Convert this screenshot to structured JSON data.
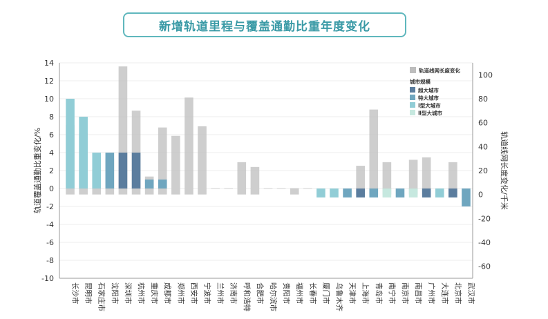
{
  "chart_data": {
    "type": "bar",
    "title": "新增轨道里程与覆盖通勤比重年度变化",
    "ylabel": "轨道覆盖通勤比重变化/%",
    "ylabel2": "轨道线网长度变化/千米",
    "ylim": [
      -10,
      14
    ],
    "ylim2": [
      -70,
      110
    ],
    "yticks": [
      14,
      12,
      10,
      8,
      6,
      4,
      2,
      0,
      -2,
      -4,
      -6,
      -8,
      -10
    ],
    "yticks2": [
      100,
      80,
      60,
      40,
      20,
      0,
      -20,
      -40,
      -60
    ],
    "categories": [
      "长沙市",
      "昆明市",
      "石家庄市",
      "沈阳市",
      "深圳市",
      "杭州市",
      "重庆市",
      "成都市",
      "郑州市",
      "西安市",
      "宁波市",
      "兰州市",
      "济南市",
      "呼和浩特",
      "合肥市",
      "哈尔滨市",
      "贵阳市",
      "福州市",
      "长春市",
      "厦门市",
      "乌鲁木齐",
      "天津市",
      "上海市",
      "青岛市",
      "南宁市",
      "南京市",
      "南昌市",
      "广州市",
      "大连市",
      "北京市",
      "武汉市"
    ],
    "series": [
      {
        "name": "轨道线网长度变化",
        "axis": "right",
        "color": "#bdbdbd",
        "values": [
          58,
          51,
          21,
          30,
          107,
          70,
          15,
          56,
          49,
          81,
          57,
          0,
          0,
          27,
          23,
          0,
          0,
          5,
          0,
          0,
          0,
          0,
          24,
          71,
          27,
          0,
          29,
          31,
          0,
          27,
          0
        ]
      },
      {
        "name": "轨道覆盖通勤比重变化",
        "axis": "left",
        "values": [
          10,
          8,
          4,
          4,
          4,
          4,
          1,
          1,
          0,
          0,
          0,
          0,
          0,
          0,
          0,
          0,
          0,
          0,
          0,
          -1,
          -1,
          -1,
          -1,
          -1,
          -1,
          -1,
          -1,
          -1,
          -1,
          -1,
          -2
        ],
        "size_class": [
          "III",
          "III",
          "III",
          "II",
          "I",
          "I",
          "II",
          "II",
          "",
          "",
          "",
          "",
          "",
          "",
          "",
          "",
          "",
          "",
          "",
          "III",
          "III",
          "II",
          "I",
          "II",
          "IV",
          "II",
          "IV",
          "I",
          "III",
          "I",
          "II"
        ]
      }
    ],
    "legend": {
      "length_label": "轨道线网长度变化",
      "size_title": "城市规模",
      "size_items": [
        {
          "key": "I",
          "label": "超大城市",
          "color": "#5b7d9e"
        },
        {
          "key": "II",
          "label": "特大城市",
          "color": "#6fa6bf"
        },
        {
          "key": "III",
          "label": "Ⅰ型大城市",
          "color": "#91cdd6"
        },
        {
          "key": "IV",
          "label": "Ⅱ型大城市",
          "color": "#c6e8df"
        }
      ],
      "position": "top-right"
    }
  }
}
